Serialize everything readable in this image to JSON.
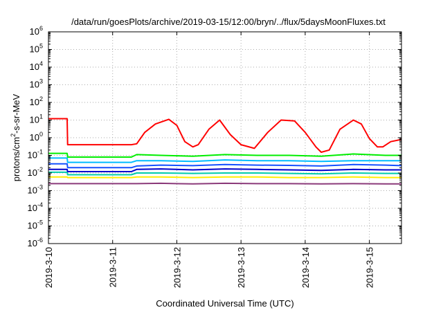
{
  "chart_data": {
    "type": "line",
    "title": "/data/run/goesPlots/archive/2019-03-15/12:00/bryn/../flux/5daysMoonFluxes.txt",
    "xlabel": "Coordinated Universal Time (UTC)",
    "ylabel": {
      "prefix": "protons/cm",
      "exponent": "2",
      "suffix": "-s-sr-MeV"
    },
    "yscale": "log",
    "ylim": [
      1e-06,
      1000000.0
    ],
    "xlim": [
      "2019-03-10T00:00",
      "2019-03-15T12:00"
    ],
    "grid": "dotted",
    "legend": "none",
    "x_ticks": [
      {
        "x": "2019-03-10T00:00",
        "label": "2019-3-10"
      },
      {
        "x": "2019-03-11T00:00",
        "label": "2019-3-11"
      },
      {
        "x": "2019-03-12T00:00",
        "label": "2019-3-12"
      },
      {
        "x": "2019-03-13T00:00",
        "label": "2019-3-13"
      },
      {
        "x": "2019-03-14T00:00",
        "label": "2019-3-14"
      },
      {
        "x": "2019-03-15T00:00",
        "label": "2019-3-15"
      }
    ],
    "y_ticks": [
      {
        "base": "10",
        "exp": "6"
      },
      {
        "base": "10",
        "exp": "5"
      },
      {
        "base": "10",
        "exp": "4"
      },
      {
        "base": "10",
        "exp": "3"
      },
      {
        "base": "10",
        "exp": "2"
      },
      {
        "base": "10",
        "exp": "1"
      },
      {
        "base": "10",
        "exp": "0"
      },
      {
        "base": "10",
        "exp": "-1"
      },
      {
        "base": "10",
        "exp": "-2"
      },
      {
        "base": "10",
        "exp": "-3"
      },
      {
        "base": "10",
        "exp": "-4"
      },
      {
        "base": "10",
        "exp": "-5"
      },
      {
        "base": "10",
        "exp": "-6"
      }
    ],
    "series": [
      {
        "color": "#ff0000",
        "x": [
          "2019-03-10T00:00",
          "2019-03-10T07:00",
          "2019-03-10T07:10",
          "2019-03-11T07:00",
          "2019-03-11T09:00",
          "2019-03-11T12:00",
          "2019-03-11T16:00",
          "2019-03-11T21:00",
          "2019-03-12T00:00",
          "2019-03-12T03:00",
          "2019-03-12T06:00",
          "2019-03-12T08:00",
          "2019-03-12T12:00",
          "2019-03-12T16:00",
          "2019-03-12T20:00",
          "2019-03-13T00:00",
          "2019-03-13T05:00",
          "2019-03-13T10:00",
          "2019-03-13T15:00",
          "2019-03-13T20:00",
          "2019-03-14T00:00",
          "2019-03-14T04:00",
          "2019-03-14T06:00",
          "2019-03-14T09:00",
          "2019-03-14T13:00",
          "2019-03-14T18:00",
          "2019-03-14T21:00",
          "2019-03-15T00:00",
          "2019-03-15T03:00",
          "2019-03-15T05:00",
          "2019-03-15T08:00",
          "2019-03-15T12:00"
        ],
        "y": [
          12,
          12,
          0.4,
          0.4,
          0.45,
          2,
          6,
          11,
          5,
          0.6,
          0.3,
          0.4,
          3,
          10,
          1.5,
          0.4,
          0.25,
          2,
          10,
          9,
          2,
          0.3,
          0.15,
          0.2,
          3,
          10,
          6,
          0.9,
          0.3,
          0.3,
          0.6,
          0.8
        ]
      },
      {
        "color": "#00ee00",
        "x": [
          "2019-03-10T00:00",
          "2019-03-10T07:00",
          "2019-03-10T07:10",
          "2019-03-11T07:00",
          "2019-03-11T09:00",
          "2019-03-11T18:00",
          "2019-03-12T06:00",
          "2019-03-12T18:00",
          "2019-03-13T06:00",
          "2019-03-13T18:00",
          "2019-03-14T06:00",
          "2019-03-14T18:00",
          "2019-03-15T06:00",
          "2019-03-15T12:00"
        ],
        "y": [
          0.13,
          0.13,
          0.08,
          0.08,
          0.11,
          0.1,
          0.09,
          0.11,
          0.1,
          0.1,
          0.09,
          0.12,
          0.1,
          0.1
        ]
      },
      {
        "color": "#00bbff",
        "x": [
          "2019-03-10T00:00",
          "2019-03-10T07:00",
          "2019-03-10T07:10",
          "2019-03-11T07:00",
          "2019-03-11T09:00",
          "2019-03-11T18:00",
          "2019-03-12T06:00",
          "2019-03-12T18:00",
          "2019-03-13T06:00",
          "2019-03-13T18:00",
          "2019-03-14T06:00",
          "2019-03-14T18:00",
          "2019-03-15T06:00",
          "2019-03-15T12:00"
        ],
        "y": [
          0.07,
          0.07,
          0.04,
          0.04,
          0.05,
          0.05,
          0.045,
          0.055,
          0.05,
          0.05,
          0.045,
          0.05,
          0.05,
          0.05
        ]
      },
      {
        "color": "#1450ff",
        "x": [
          "2019-03-10T00:00",
          "2019-03-10T07:00",
          "2019-03-10T07:10",
          "2019-03-11T07:00",
          "2019-03-11T09:00",
          "2019-03-11T18:00",
          "2019-03-12T06:00",
          "2019-03-12T18:00",
          "2019-03-13T06:00",
          "2019-03-13T18:00",
          "2019-03-14T06:00",
          "2019-03-14T18:00",
          "2019-03-15T06:00",
          "2019-03-15T12:00"
        ],
        "y": [
          0.033,
          0.033,
          0.02,
          0.02,
          0.025,
          0.028,
          0.026,
          0.03,
          0.028,
          0.027,
          0.025,
          0.03,
          0.028,
          0.026
        ]
      },
      {
        "color": "#0000cc",
        "x": [
          "2019-03-10T00:00",
          "2019-03-10T07:00",
          "2019-03-10T07:10",
          "2019-03-11T07:00",
          "2019-03-11T09:00",
          "2019-03-11T18:00",
          "2019-03-12T06:00",
          "2019-03-12T18:00",
          "2019-03-13T06:00",
          "2019-03-13T18:00",
          "2019-03-14T06:00",
          "2019-03-14T18:00",
          "2019-03-15T06:00",
          "2019-03-15T12:00"
        ],
        "y": [
          0.016,
          0.016,
          0.012,
          0.012,
          0.016,
          0.017,
          0.015,
          0.017,
          0.016,
          0.015,
          0.014,
          0.016,
          0.015,
          0.015
        ]
      },
      {
        "color": "#00ccaa",
        "x": [
          "2019-03-10T00:00",
          "2019-03-10T07:00",
          "2019-03-10T07:10",
          "2019-03-11T07:00",
          "2019-03-11T09:00",
          "2019-03-11T18:00",
          "2019-03-12T06:00",
          "2019-03-12T18:00",
          "2019-03-13T06:00",
          "2019-03-13T18:00",
          "2019-03-14T06:00",
          "2019-03-14T18:00",
          "2019-03-15T06:00",
          "2019-03-15T12:00"
        ],
        "y": [
          0.011,
          0.011,
          0.008,
          0.008,
          0.01,
          0.01,
          0.0095,
          0.01,
          0.01,
          0.0095,
          0.009,
          0.01,
          0.0095,
          0.0095
        ]
      },
      {
        "color": "#ffee00",
        "x": [
          "2019-03-10T00:00",
          "2019-03-10T07:00",
          "2019-03-10T07:10",
          "2019-03-11T07:00",
          "2019-03-11T09:00",
          "2019-03-11T18:00",
          "2019-03-12T06:00",
          "2019-03-12T18:00",
          "2019-03-13T06:00",
          "2019-03-13T18:00",
          "2019-03-14T06:00",
          "2019-03-14T18:00",
          "2019-03-15T06:00",
          "2019-03-15T12:00"
        ],
        "y": [
          0.006,
          0.006,
          0.0055,
          0.0055,
          0.006,
          0.006,
          0.0055,
          0.006,
          0.006,
          0.0055,
          0.0055,
          0.006,
          0.0055,
          0.0055
        ]
      },
      {
        "color": "#8b3a7a",
        "x": [
          "2019-03-10T00:00",
          "2019-03-10T07:00",
          "2019-03-10T07:10",
          "2019-03-11T07:00",
          "2019-03-11T09:00",
          "2019-03-11T18:00",
          "2019-03-12T06:00",
          "2019-03-12T18:00",
          "2019-03-13T06:00",
          "2019-03-13T18:00",
          "2019-03-14T06:00",
          "2019-03-14T18:00",
          "2019-03-15T06:00",
          "2019-03-15T12:00"
        ],
        "y": [
          0.0025,
          0.0025,
          0.0025,
          0.0025,
          0.0025,
          0.0026,
          0.0024,
          0.0026,
          0.0025,
          0.0025,
          0.0024,
          0.0025,
          0.0024,
          0.0024
        ]
      }
    ]
  }
}
